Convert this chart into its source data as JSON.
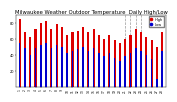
{
  "title": "Milwaukee Weather Outdoor Temperature  Daily High/Low",
  "title_fontsize": 3.8,
  "bar_width": 0.4,
  "background_color": "#ffffff",
  "high_color": "#dd0000",
  "low_color": "#0000cc",
  "ylim": [
    0,
    90
  ],
  "yticks": [
    20,
    40,
    60,
    80
  ],
  "n_days": 28,
  "days": [
    "1",
    "2",
    "3",
    "4",
    "5",
    "6",
    "7",
    "8",
    "9",
    "10",
    "11",
    "12",
    "13",
    "14",
    "15",
    "16",
    "17",
    "18",
    "19",
    "20",
    "21",
    "22",
    "23",
    "24",
    "25",
    "26",
    "27",
    "28"
  ],
  "highs": [
    85,
    68,
    62,
    72,
    80,
    82,
    72,
    78,
    75,
    65,
    68,
    70,
    75,
    68,
    72,
    65,
    60,
    65,
    58,
    55,
    60,
    65,
    72,
    68,
    62,
    58,
    50,
    68
  ],
  "lows": [
    55,
    48,
    40,
    48,
    52,
    55,
    48,
    52,
    50,
    42,
    45,
    47,
    50,
    44,
    48,
    42,
    38,
    42,
    36,
    32,
    38,
    42,
    48,
    45,
    40,
    35,
    10,
    44
  ],
  "dashed_indices": [
    20,
    21,
    22,
    23
  ],
  "legend_high": "High",
  "legend_low": "Low",
  "legend_dot_high": "#dd0000",
  "legend_dot_low": "#0000cc"
}
